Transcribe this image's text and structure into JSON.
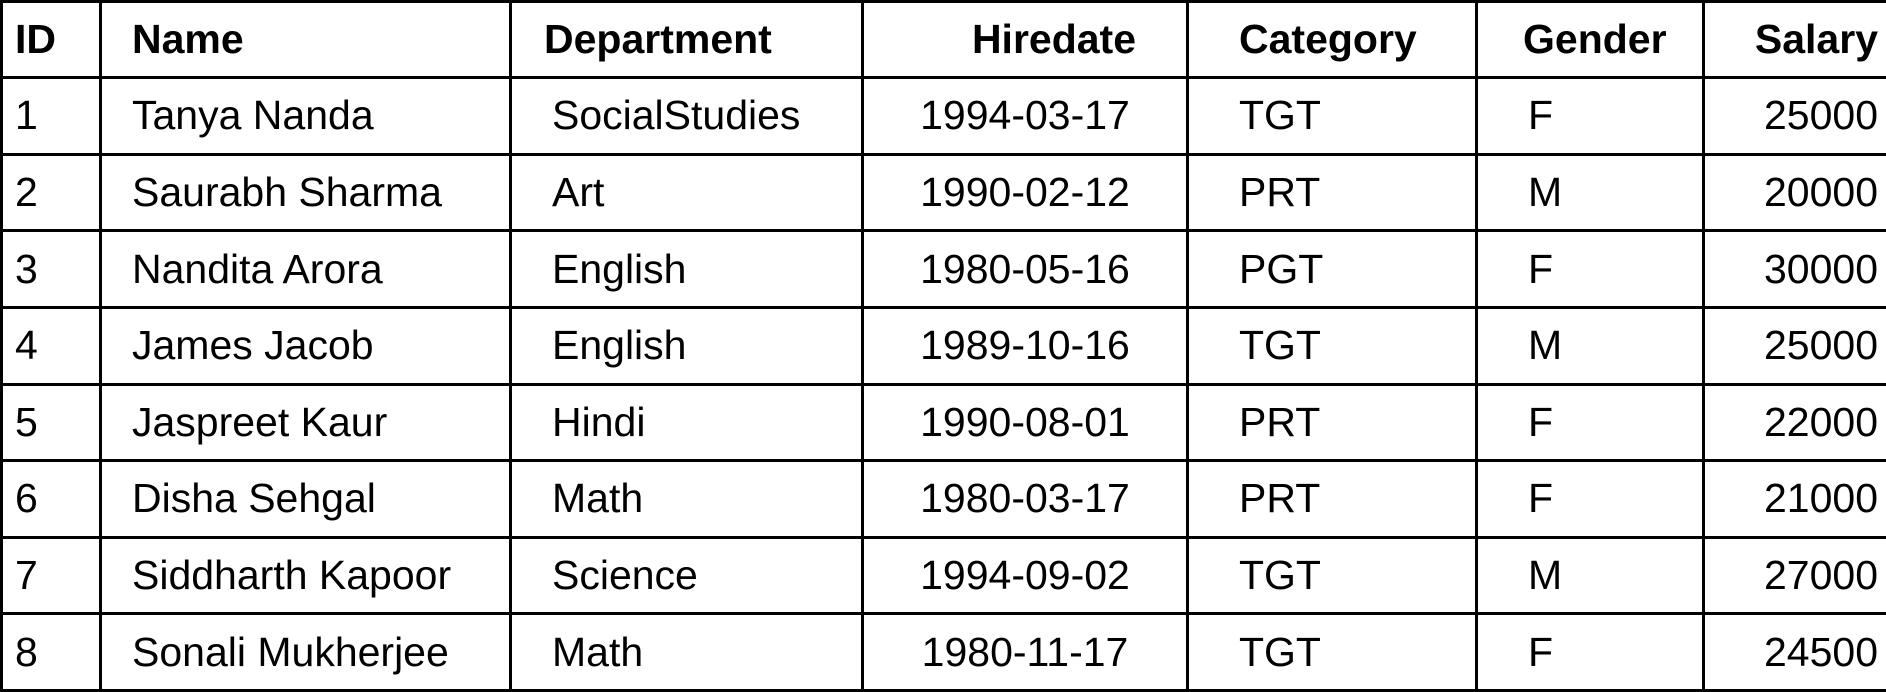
{
  "table": {
    "header": [
      "ID",
      "Name",
      "Department",
      "Hiredate",
      "Category",
      "Gender",
      "Salary"
    ],
    "rows": [
      [
        1,
        "Tanya Nanda",
        "SocialStudies",
        "1994-03-17",
        "TGT",
        "F",
        25000
      ],
      [
        2,
        "Saurabh Sharma",
        "Art",
        "1990-02-12",
        "PRT",
        "M",
        20000
      ],
      [
        3,
        "Nandita Arora",
        "English",
        "1980-05-16",
        "PGT",
        "F",
        30000
      ],
      [
        4,
        "James Jacob",
        "English",
        "1989-10-16",
        "TGT",
        "M",
        25000
      ],
      [
        5,
        "Jaspreet Kaur",
        "Hindi",
        "1990-08-01",
        "PRT",
        "F",
        22000
      ],
      [
        6,
        "Disha Sehgal",
        "Math",
        "1980-03-17",
        "PRT",
        "F",
        21000
      ],
      [
        7,
        "Siddharth Kapoor",
        "Science",
        "1994-09-02",
        "TGT",
        "M",
        27000
      ],
      [
        8,
        "Sonali Mukherjee",
        "Math",
        "1980-11-17",
        "TGT",
        "F",
        24500
      ]
    ]
  }
}
